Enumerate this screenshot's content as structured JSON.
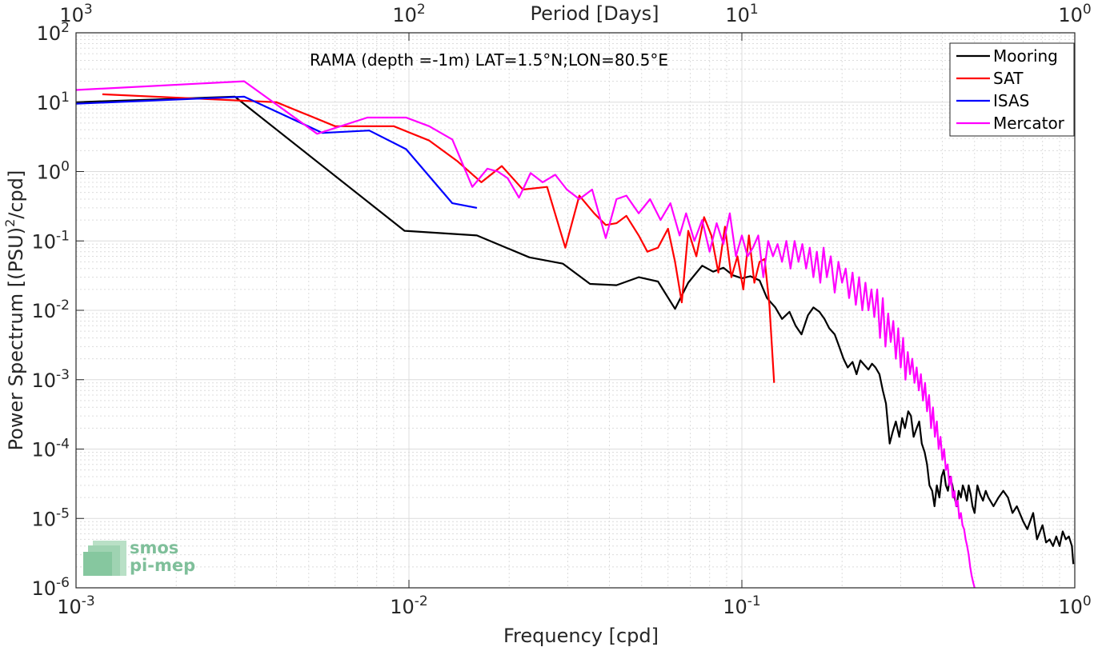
{
  "chart_data": {
    "type": "line",
    "annotation": "RAMA (depth =-1m) LAT=1.5°N;LON=80.5°E",
    "xlabel": "Frequency [cpd]",
    "ylabel": "Power Spectrum [(PSU)",
    "ylabel_sup": "2",
    "ylabel_tail": "/cpd]",
    "top_xlabel": "Period [Days]",
    "xscale": "log",
    "yscale": "log",
    "xlim": [
      0.001,
      1
    ],
    "ylim": [
      1e-06,
      100
    ],
    "grid": true,
    "legend_position": "top-right",
    "x_ticks": [
      {
        "v": 0.001,
        "base": "10",
        "exp": "-3"
      },
      {
        "v": 0.01,
        "base": "10",
        "exp": "-2"
      },
      {
        "v": 0.1,
        "base": "10",
        "exp": "-1"
      },
      {
        "v": 1,
        "base": "10",
        "exp": "0"
      }
    ],
    "y_ticks": [
      {
        "v": 1e-06,
        "base": "10",
        "exp": "-6"
      },
      {
        "v": 1e-05,
        "base": "10",
        "exp": "-5"
      },
      {
        "v": 0.0001,
        "base": "10",
        "exp": "-4"
      },
      {
        "v": 0.001,
        "base": "10",
        "exp": "-3"
      },
      {
        "v": 0.01,
        "base": "10",
        "exp": "-2"
      },
      {
        "v": 0.1,
        "base": "10",
        "exp": "-1"
      },
      {
        "v": 1,
        "base": "10",
        "exp": "0"
      },
      {
        "v": 10,
        "base": "10",
        "exp": "1"
      },
      {
        "v": 100,
        "base": "10",
        "exp": "2"
      }
    ],
    "top_ticks": [
      {
        "v": 0.001,
        "base": "10",
        "exp": "3"
      },
      {
        "v": 0.01,
        "base": "10",
        "exp": "2"
      },
      {
        "v": 0.1,
        "base": "10",
        "exp": "1"
      },
      {
        "v": 1,
        "base": "10",
        "exp": "0"
      }
    ],
    "series": [
      {
        "name": "Mooring",
        "color": "#000000",
        "x": [
          0.001,
          0.003,
          0.0097,
          0.016,
          0.023,
          0.029,
          0.035,
          0.042,
          0.049,
          0.056,
          0.063,
          0.069,
          0.076,
          0.082,
          0.088,
          0.094,
          0.1,
          0.106,
          0.113,
          0.119,
          0.126,
          0.132,
          0.139,
          0.145,
          0.151,
          0.158,
          0.164,
          0.171,
          0.177,
          0.183,
          0.19,
          0.196,
          0.202,
          0.208,
          0.215,
          0.221,
          0.227,
          0.234,
          0.24,
          0.246,
          0.252,
          0.259,
          0.265,
          0.271,
          0.278,
          0.284,
          0.29,
          0.297,
          0.303,
          0.309,
          0.316,
          0.322,
          0.328,
          0.335,
          0.341,
          0.347,
          0.354,
          0.36,
          0.366,
          0.373,
          0.379,
          0.385,
          0.392,
          0.398,
          0.404,
          0.41,
          0.416,
          0.422,
          0.429,
          0.435,
          0.442,
          0.448,
          0.455,
          0.461,
          0.467,
          0.474,
          0.48,
          0.487,
          0.493,
          0.5,
          0.51,
          0.52,
          0.53,
          0.54,
          0.55,
          0.57,
          0.59,
          0.61,
          0.63,
          0.65,
          0.67,
          0.7,
          0.72,
          0.75,
          0.77,
          0.8,
          0.82,
          0.84,
          0.86,
          0.88,
          0.9,
          0.92,
          0.94,
          0.96,
          0.98,
          0.99
        ],
        "y": [
          10,
          12,
          0.14,
          0.12,
          0.058,
          0.047,
          0.024,
          0.023,
          0.03,
          0.026,
          0.0105,
          0.025,
          0.044,
          0.036,
          0.041,
          0.032,
          0.029,
          0.031,
          0.027,
          0.015,
          0.011,
          0.0075,
          0.0095,
          0.006,
          0.0045,
          0.0085,
          0.011,
          0.0095,
          0.0075,
          0.0055,
          0.0045,
          0.003,
          0.002,
          0.0015,
          0.0018,
          0.0012,
          0.0019,
          0.0016,
          0.0014,
          0.0017,
          0.0015,
          0.0012,
          0.0007,
          0.00045,
          0.00012,
          0.00018,
          0.00025,
          0.00015,
          0.00028,
          0.0002,
          0.00035,
          0.0003,
          0.00015,
          0.0002,
          0.00025,
          0.00012,
          9e-05,
          6e-05,
          3e-05,
          2.5e-05,
          1.5e-05,
          3e-05,
          2e-05,
          4e-05,
          5e-05,
          3e-05,
          2.5e-05,
          4e-05,
          3e-05,
          2e-05,
          1.5e-05,
          2.5e-05,
          2e-05,
          3e-05,
          2.5e-05,
          1.8e-05,
          3e-05,
          2.2e-05,
          1.5e-05,
          1.2e-05,
          3e-05,
          2.2e-05,
          1.8e-05,
          2.5e-05,
          2e-05,
          1.5e-05,
          2e-05,
          2.5e-05,
          2e-05,
          1.2e-05,
          1.5e-05,
          9e-06,
          7e-06,
          1.2e-05,
          5e-06,
          8e-06,
          4.5e-06,
          5e-06,
          4e-06,
          5.5e-06,
          4e-06,
          6.5e-06,
          5e-06,
          5.5e-06,
          4e-06,
          2.2e-06
        ]
      },
      {
        "name": "SAT",
        "color": "#ff0000",
        "x": [
          0.0012,
          0.004,
          0.006,
          0.009,
          0.0115,
          0.014,
          0.0165,
          0.019,
          0.022,
          0.026,
          0.0295,
          0.0325,
          0.036,
          0.039,
          0.042,
          0.045,
          0.049,
          0.052,
          0.056,
          0.06,
          0.063,
          0.066,
          0.069,
          0.073,
          0.077,
          0.081,
          0.085,
          0.089,
          0.093,
          0.097,
          0.101,
          0.105,
          0.109,
          0.113,
          0.117,
          0.121,
          0.125
        ],
        "y": [
          13,
          10,
          4.5,
          4.5,
          2.8,
          1.4,
          0.7,
          1.2,
          0.55,
          0.6,
          0.08,
          0.45,
          0.25,
          0.17,
          0.18,
          0.23,
          0.12,
          0.07,
          0.08,
          0.15,
          0.05,
          0.013,
          0.14,
          0.06,
          0.22,
          0.12,
          0.035,
          0.16,
          0.03,
          0.06,
          0.02,
          0.12,
          0.025,
          0.05,
          0.055,
          0.012,
          0.0009
        ]
      },
      {
        "name": "ISAS",
        "color": "#0000ff",
        "x": [
          0.001,
          0.0032,
          0.0055,
          0.0076,
          0.0098,
          0.0135,
          0.016
        ],
        "y": [
          9.5,
          12,
          3.6,
          3.9,
          2.1,
          0.35,
          0.3
        ]
      },
      {
        "name": "Mercator",
        "color": "#ff00ff",
        "x": [
          0.001,
          0.0032,
          0.0053,
          0.0075,
          0.0098,
          0.0115,
          0.0135,
          0.0155,
          0.0172,
          0.0185,
          0.0198,
          0.0214,
          0.0232,
          0.0252,
          0.0275,
          0.0298,
          0.0325,
          0.0355,
          0.039,
          0.042,
          0.045,
          0.049,
          0.053,
          0.057,
          0.061,
          0.065,
          0.068,
          0.072,
          0.076,
          0.08,
          0.084,
          0.088,
          0.092,
          0.096,
          0.1,
          0.104,
          0.108,
          0.112,
          0.116,
          0.12,
          0.124,
          0.128,
          0.132,
          0.136,
          0.14,
          0.144,
          0.148,
          0.152,
          0.156,
          0.16,
          0.164,
          0.168,
          0.172,
          0.176,
          0.18,
          0.185,
          0.19,
          0.195,
          0.2,
          0.205,
          0.21,
          0.215,
          0.22,
          0.225,
          0.23,
          0.235,
          0.24,
          0.245,
          0.25,
          0.255,
          0.26,
          0.265,
          0.27,
          0.275,
          0.28,
          0.285,
          0.29,
          0.295,
          0.3,
          0.305,
          0.31,
          0.315,
          0.32,
          0.325,
          0.33,
          0.335,
          0.34,
          0.345,
          0.35,
          0.355,
          0.36,
          0.365,
          0.37,
          0.375,
          0.38,
          0.385,
          0.39,
          0.395,
          0.4,
          0.405,
          0.41,
          0.415,
          0.42,
          0.425,
          0.43,
          0.435,
          0.44,
          0.445,
          0.45,
          0.455,
          0.46,
          0.465,
          0.47,
          0.475,
          0.48,
          0.485,
          0.49,
          0.495,
          0.5
        ],
        "y": [
          15,
          20,
          3.5,
          6,
          6,
          4.5,
          2.9,
          0.6,
          1.1,
          1.0,
          0.8,
          0.42,
          0.95,
          0.7,
          0.9,
          0.55,
          0.4,
          0.55,
          0.11,
          0.4,
          0.45,
          0.25,
          0.4,
          0.2,
          0.35,
          0.12,
          0.25,
          0.1,
          0.2,
          0.07,
          0.18,
          0.09,
          0.25,
          0.06,
          0.12,
          0.06,
          0.08,
          0.12,
          0.03,
          0.1,
          0.06,
          0.09,
          0.05,
          0.1,
          0.04,
          0.1,
          0.05,
          0.09,
          0.04,
          0.08,
          0.03,
          0.07,
          0.025,
          0.08,
          0.03,
          0.06,
          0.018,
          0.05,
          0.025,
          0.04,
          0.015,
          0.035,
          0.012,
          0.03,
          0.01,
          0.025,
          0.01,
          0.02,
          0.008,
          0.02,
          0.004,
          0.015,
          0.003,
          0.009,
          0.0035,
          0.007,
          0.002,
          0.0055,
          0.0015,
          0.004,
          0.001,
          0.0025,
          0.0012,
          0.002,
          0.0009,
          0.0015,
          0.0007,
          0.0012,
          0.0005,
          0.0009,
          0.00035,
          0.0006,
          0.0002,
          0.0004,
          0.00015,
          0.00025,
          0.0001,
          0.00015,
          7e-05,
          0.0001,
          5e-05,
          6e-05,
          3e-05,
          4e-05,
          2e-05,
          2.5e-05,
          1.5e-05,
          1.8e-05,
          1e-05,
          1.2e-05,
          8e-06,
          7e-06,
          5e-06,
          4e-06,
          3e-06,
          2e-06,
          1.5e-06,
          1.2e-06,
          1e-06
        ]
      }
    ]
  },
  "logo": {
    "line1": "smos",
    "line2": "pi-mep"
  }
}
